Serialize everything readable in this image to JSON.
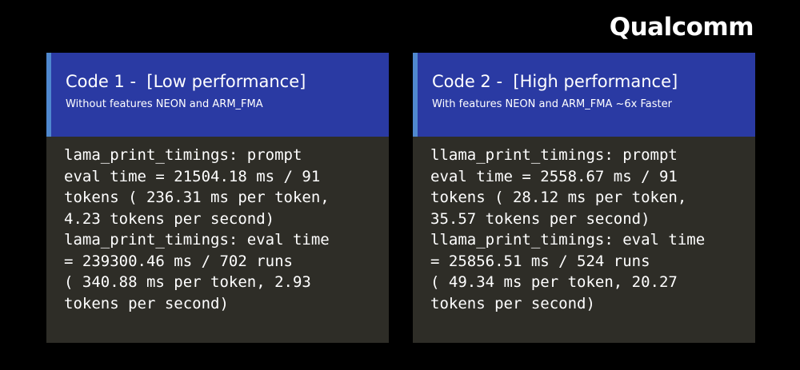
{
  "brand": {
    "logo_text": "Qualcomm"
  },
  "panels": [
    {
      "title": "Code 1 -  [Low performance]",
      "subtitle": "Without features NEON and ARM_FMA",
      "code_lines": [
        "lama_print_timings: prompt",
        "eval time = 21504.18 ms / 91",
        "tokens ( 236.31 ms per token,",
        "4.23 tokens per second)",
        "lama_print_timings: eval time",
        "= 239300.46 ms / 702 runs",
        "( 340.88 ms per token, 2.93",
        "tokens per second)"
      ]
    },
    {
      "title": "Code 2 -  [High performance]",
      "subtitle": "With features NEON and ARM_FMA ~6x Faster",
      "code_lines": [
        "llama_print_timings: prompt",
        "eval time = 2558.67 ms / 91",
        "tokens ( 28.12 ms per token,",
        "35.57 tokens per second)",
        "llama_print_timings: eval time",
        "= 25856.51 ms / 524 runs",
        "( 49.34 ms per token, 20.27",
        "tokens per second)"
      ]
    }
  ],
  "colors": {
    "background": "#000000",
    "header": "#2a3aa3",
    "accent": "#4f88cf",
    "body": "#2e2d27",
    "text": "#ffffff"
  }
}
